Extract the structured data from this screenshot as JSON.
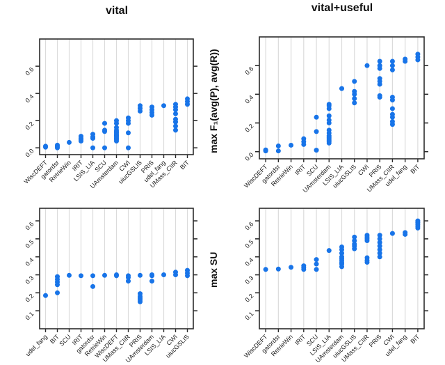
{
  "figure": {
    "titles": [
      "vital",
      "vital+useful"
    ],
    "ylabels": [
      "max F₁(avg(P), avg(R))",
      "max SU"
    ],
    "colors": {
      "point": "#1874E8",
      "grid": "#DBDBDB",
      "axis": "#2B2B2B",
      "label": "#1A1A1A",
      "background": "#FFFFFF"
    }
  },
  "chart_data": [
    {
      "type": "scatter",
      "title": "vital",
      "ylabel": "max F1(avg(P), avg(R))",
      "xlabel": "",
      "legend": "none",
      "grid": "vertical",
      "ylim": [
        -0.05,
        0.8
      ],
      "yticks": [
        0.0,
        0.2,
        0.4,
        0.6
      ],
      "categories": [
        "WiscDEFT",
        "gatordsr",
        "RetrieWin",
        "IRIT",
        "LSIS_LIA",
        "SCU",
        "UAmsterdam",
        "CWI",
        "uiucGSLIS",
        "PRIS",
        "udel_fang",
        "UMass_CIIR",
        "BIT"
      ],
      "series": [
        {
          "name": "WiscDEFT",
          "values": [
            0.005,
            0.012
          ]
        },
        {
          "name": "gatordsr",
          "values": [
            0.0,
            0.01,
            0.02
          ]
        },
        {
          "name": "RetrieWin",
          "values": [
            0.04
          ]
        },
        {
          "name": "IRIT",
          "values": [
            0.05,
            0.06,
            0.07,
            0.085
          ]
        },
        {
          "name": "LSIS_LIA",
          "values": [
            0.0,
            0.07,
            0.08,
            0.1
          ]
        },
        {
          "name": "SCU",
          "values": [
            0.0,
            0.12,
            0.13,
            0.18
          ]
        },
        {
          "name": "UAmsterdam",
          "values": [
            0.05,
            0.06,
            0.07,
            0.08,
            0.09,
            0.1,
            0.11,
            0.12,
            0.13,
            0.15,
            0.18,
            0.2
          ]
        },
        {
          "name": "CWI",
          "values": [
            0.0,
            0.11,
            0.18,
            0.2,
            0.22
          ]
        },
        {
          "name": "uiucGSLIS",
          "values": [
            0.27,
            0.29,
            0.31
          ]
        },
        {
          "name": "PRIS",
          "values": [
            0.24,
            0.26,
            0.28,
            0.3
          ]
        },
        {
          "name": "udel_fang",
          "values": [
            0.31
          ]
        },
        {
          "name": "UMass_CIIR",
          "values": [
            0.13,
            0.16,
            0.19,
            0.21,
            0.25,
            0.28,
            0.3,
            0.32
          ]
        },
        {
          "name": "BIT",
          "values": [
            0.32,
            0.34,
            0.36
          ]
        }
      ]
    },
    {
      "type": "scatter",
      "title": "vital+useful",
      "ylabel": "max F1(avg(P), avg(R))",
      "xlabel": "",
      "legend": "none",
      "grid": "vertical",
      "ylim": [
        -0.05,
        0.8
      ],
      "yticks": [
        0.0,
        0.2,
        0.4,
        0.6
      ],
      "categories": [
        "WiscDEFT",
        "gatordsr",
        "RetrieWin",
        "IRIT",
        "SCU",
        "UAmsterdam",
        "LSIS_LIA",
        "uiucGSLIS",
        "CWI",
        "PRIS",
        "UMass_CIIR",
        "udel_fang",
        "BIT"
      ],
      "series": [
        {
          "name": "WiscDEFT",
          "values": [
            0.005,
            0.012
          ]
        },
        {
          "name": "gatordsr",
          "values": [
            0.005,
            0.04
          ]
        },
        {
          "name": "RetrieWin",
          "values": [
            0.045
          ]
        },
        {
          "name": "IRIT",
          "values": [
            0.05,
            0.07,
            0.09
          ]
        },
        {
          "name": "SCU",
          "values": [
            0.01,
            0.14,
            0.24
          ]
        },
        {
          "name": "UAmsterdam",
          "values": [
            0.06,
            0.07,
            0.08,
            0.09,
            0.1,
            0.11,
            0.13,
            0.15,
            0.2,
            0.22,
            0.25,
            0.3,
            0.32,
            0.33
          ]
        },
        {
          "name": "LSIS_LIA",
          "values": [
            0.44
          ]
        },
        {
          "name": "uiucGSLIS",
          "values": [
            0.34,
            0.37,
            0.4,
            0.42,
            0.49
          ]
        },
        {
          "name": "CWI",
          "values": [
            0.6
          ]
        },
        {
          "name": "PRIS",
          "values": [
            0.38,
            0.39,
            0.47,
            0.49,
            0.51,
            0.58,
            0.6,
            0.63
          ]
        },
        {
          "name": "UMass_CIIR",
          "values": [
            0.19,
            0.21,
            0.24,
            0.26,
            0.3,
            0.36,
            0.38,
            0.57,
            0.6,
            0.63
          ]
        },
        {
          "name": "udel_fang",
          "values": [
            0.63,
            0.645
          ]
        },
        {
          "name": "BIT",
          "values": [
            0.64,
            0.66,
            0.68
          ]
        }
      ]
    },
    {
      "type": "scatter",
      "title": "vital",
      "ylabel": "max SU",
      "xlabel": "",
      "legend": "none",
      "grid": "vertical",
      "ylim": [
        0.0,
        0.67
      ],
      "yticks": [
        0.1,
        0.2,
        0.3,
        0.4,
        0.5,
        0.6
      ],
      "categories": [
        "udel_fang",
        "BIT",
        "SCU",
        "IRIT",
        "gatordsr",
        "RetrieWin",
        "WiscDEFT",
        "UMass_CIIR",
        "PRIS",
        "UAmsterdam",
        "LSIS_LIA",
        "CWI",
        "uiucGSLIS"
      ],
      "series": [
        {
          "name": "udel_fang",
          "values": [
            0.185
          ]
        },
        {
          "name": "BIT",
          "values": [
            0.2,
            0.245,
            0.26,
            0.275,
            0.29
          ]
        },
        {
          "name": "SCU",
          "values": [
            0.297
          ]
        },
        {
          "name": "IRIT",
          "values": [
            0.295
          ]
        },
        {
          "name": "gatordsr",
          "values": [
            0.235,
            0.295
          ]
        },
        {
          "name": "RetrieWin",
          "values": [
            0.297
          ]
        },
        {
          "name": "WiscDEFT",
          "values": [
            0.295,
            0.3
          ]
        },
        {
          "name": "UMass_CIIR",
          "values": [
            0.265,
            0.285,
            0.295
          ]
        },
        {
          "name": "PRIS",
          "values": [
            0.15,
            0.16,
            0.17,
            0.18,
            0.195,
            0.297
          ]
        },
        {
          "name": "UAmsterdam",
          "values": [
            0.265,
            0.295,
            0.3
          ]
        },
        {
          "name": "LSIS_LIA",
          "values": [
            0.3
          ]
        },
        {
          "name": "CWI",
          "values": [
            0.3,
            0.315
          ]
        },
        {
          "name": "uiucGSLIS",
          "values": [
            0.295,
            0.31,
            0.325
          ]
        }
      ]
    },
    {
      "type": "scatter",
      "title": "vital+useful",
      "ylabel": "max SU",
      "xlabel": "",
      "legend": "none",
      "grid": "vertical",
      "ylim": [
        0.0,
        0.67
      ],
      "yticks": [
        0.1,
        0.2,
        0.3,
        0.4,
        0.5,
        0.6
      ],
      "categories": [
        "WiscDEFT",
        "gatordsr",
        "RetrieWin",
        "IRIT",
        "SCU",
        "LSIS_LIA",
        "UAmsterdam",
        "uiucGSLIS",
        "UMass_CIIR",
        "PRIS",
        "CWI",
        "udel_fang",
        "BIT"
      ],
      "series": [
        {
          "name": "WiscDEFT",
          "values": [
            0.33
          ]
        },
        {
          "name": "gatordsr",
          "values": [
            0.332
          ]
        },
        {
          "name": "RetrieWin",
          "values": [
            0.342
          ]
        },
        {
          "name": "IRIT",
          "values": [
            0.33,
            0.34,
            0.35
          ]
        },
        {
          "name": "SCU",
          "values": [
            0.33,
            0.36,
            0.385
          ]
        },
        {
          "name": "LSIS_LIA",
          "values": [
            0.435
          ]
        },
        {
          "name": "UAmsterdam",
          "values": [
            0.345,
            0.36,
            0.37,
            0.38,
            0.39,
            0.4,
            0.42,
            0.44,
            0.455
          ]
        },
        {
          "name": "uiucGSLIS",
          "values": [
            0.445,
            0.46,
            0.47,
            0.49,
            0.51
          ]
        },
        {
          "name": "UMass_CIIR",
          "values": [
            0.37,
            0.38,
            0.395,
            0.49,
            0.5,
            0.51,
            0.52
          ]
        },
        {
          "name": "PRIS",
          "values": [
            0.4,
            0.42,
            0.44,
            0.46,
            0.48,
            0.5,
            0.52
          ]
        },
        {
          "name": "CWI",
          "values": [
            0.53
          ]
        },
        {
          "name": "udel_fang",
          "values": [
            0.525,
            0.535
          ]
        },
        {
          "name": "BIT",
          "values": [
            0.56,
            0.57,
            0.58,
            0.59,
            0.6
          ]
        }
      ]
    }
  ]
}
